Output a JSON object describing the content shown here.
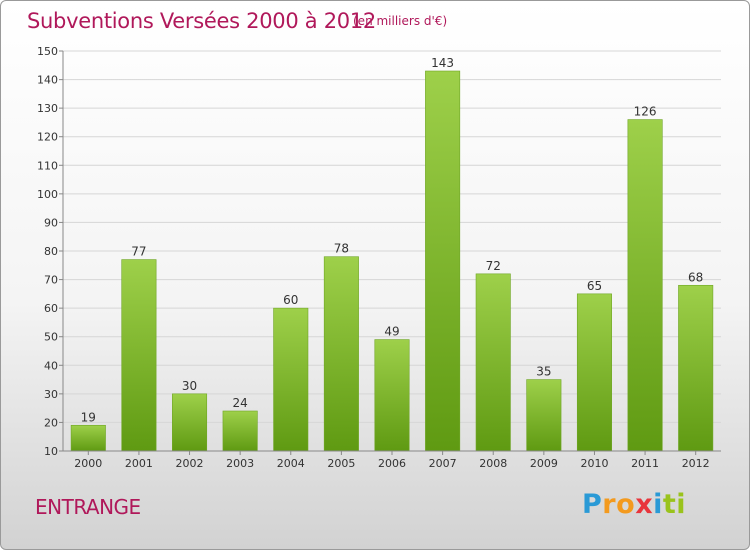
{
  "header": {
    "title": "Subventions Versées 2000 à 2012",
    "subtitle": "(en milliers d'€)"
  },
  "footer": {
    "commune": "ENTRANGE",
    "logo_letters": [
      "P",
      "r",
      "o",
      "x",
      "i",
      "t",
      "i"
    ],
    "logo_colors": [
      "#2a9ad6",
      "#f39a1e",
      "#f39a1e",
      "#e8353c",
      "#2a9ad6",
      "#9ac31c",
      "#9ac31c"
    ]
  },
  "chart_data": {
    "type": "bar",
    "title": "Subventions Versées 2000 à 2012",
    "subtitle": "(en milliers d'€)",
    "categories": [
      "2000",
      "2001",
      "2002",
      "2003",
      "2004",
      "2005",
      "2006",
      "2007",
      "2008",
      "2009",
      "2010",
      "2011",
      "2012"
    ],
    "values": [
      19,
      77,
      30,
      24,
      60,
      78,
      49,
      143,
      72,
      35,
      65,
      126,
      68
    ],
    "ylim": [
      10,
      150
    ],
    "yticks": [
      10,
      20,
      30,
      40,
      50,
      60,
      70,
      80,
      90,
      100,
      110,
      120,
      130,
      140,
      150
    ],
    "grid": true,
    "bar_color_top": "#9ed04a",
    "bar_color_bottom": "#5f9a12",
    "legend": "none"
  }
}
